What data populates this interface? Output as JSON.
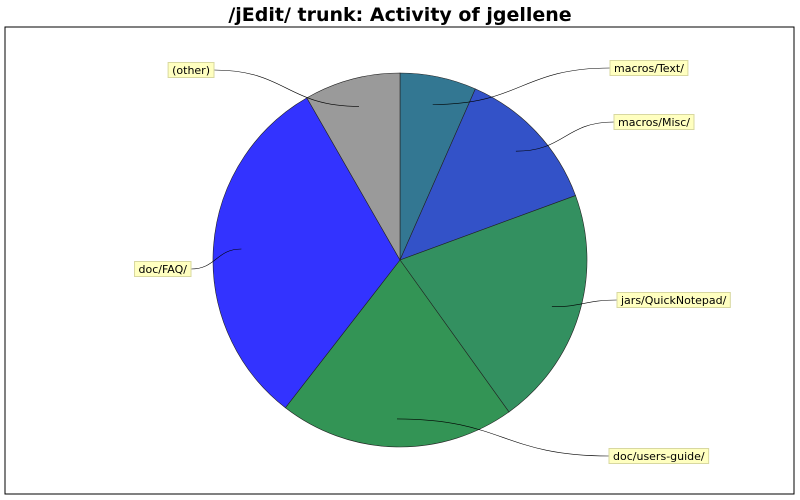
{
  "chart_data": {
    "type": "pie",
    "title": "/jEdit/ trunk: Activity of jgellene",
    "slices": [
      {
        "label": "macros/Text/",
        "value": 6.6,
        "color": "#337792"
      },
      {
        "label": "macros/Misc/",
        "value": 12.8,
        "color": "#3352c8"
      },
      {
        "label": "jars/QuickNotepad/",
        "value": 20.7,
        "color": "#339060"
      },
      {
        "label": "doc/users-guide/",
        "value": 20.4,
        "color": "#339455"
      },
      {
        "label": "doc/FAQ/",
        "value": 31.2,
        "color": "#3333ff"
      },
      {
        "label": "(other)",
        "value": 8.3,
        "color": "#9a9a9a"
      }
    ],
    "legend": "none"
  }
}
